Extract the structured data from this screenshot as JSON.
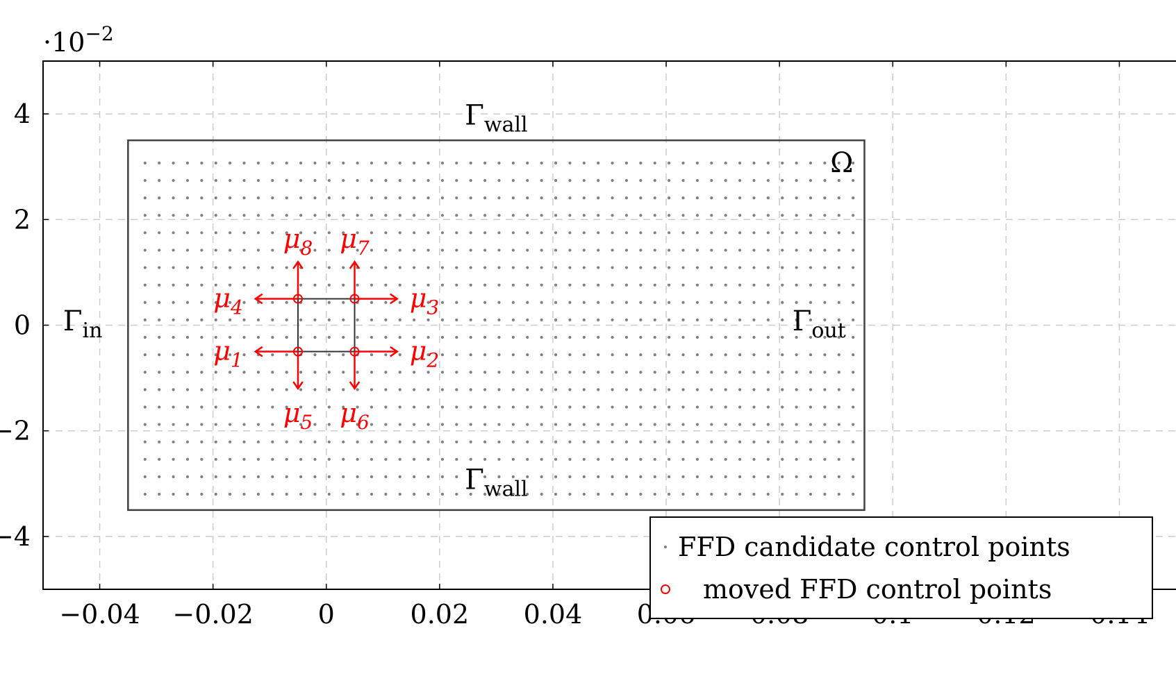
{
  "chart_data": {
    "type": "scatter",
    "title": "",
    "xlabel": "",
    "ylabel": "",
    "y_scale_factor": {
      "dot": "·10",
      "exp": "−2"
    },
    "xlim": [
      -0.05,
      0.15
    ],
    "ylim": [
      -5,
      5
    ],
    "x_ticks": [
      -0.04,
      -0.02,
      0,
      0.02,
      0.04,
      0.06,
      0.08,
      0.1,
      0.12,
      0.14
    ],
    "x_tick_labels": [
      "−0.04",
      "−0.02",
      "0",
      "0.02",
      "0.04",
      "0.06",
      "0.08",
      "0.1",
      "0.12",
      "0.14"
    ],
    "y_ticks": [
      -4,
      -2,
      0,
      2,
      4
    ],
    "y_tick_labels": [
      "−4",
      "−2",
      "0",
      "2",
      "4"
    ],
    "grid": true,
    "domain_rect": {
      "x0": -0.035,
      "x1": 0.095,
      "y0": -3.5,
      "y1": 3.5
    },
    "candidate_grid": {
      "x_start": -0.032,
      "x_step": 0.0025,
      "count_x": 51,
      "y_start": -3.2,
      "y_step": 0.33,
      "count_y": 20
    },
    "moved_points": [
      {
        "x": -0.005,
        "y": -0.5
      },
      {
        "x": 0.005,
        "y": -0.5
      },
      {
        "x": 0.005,
        "y": 0.5
      },
      {
        "x": -0.005,
        "y": 0.5
      }
    ],
    "arrows": [
      {
        "label": "μ",
        "sub": "1",
        "from": [
          -0.005,
          -0.5
        ],
        "to": [
          -0.0125,
          -0.5
        ]
      },
      {
        "label": "μ",
        "sub": "2",
        "from": [
          0.005,
          -0.5
        ],
        "to": [
          0.0125,
          -0.5
        ]
      },
      {
        "label": "μ",
        "sub": "3",
        "from": [
          0.005,
          0.5
        ],
        "to": [
          0.0125,
          0.5
        ]
      },
      {
        "label": "μ",
        "sub": "4",
        "from": [
          -0.005,
          0.5
        ],
        "to": [
          -0.0125,
          0.5
        ]
      },
      {
        "label": "μ",
        "sub": "5",
        "from": [
          -0.005,
          -0.5
        ],
        "to": [
          -0.005,
          -1.2
        ]
      },
      {
        "label": "μ",
        "sub": "6",
        "from": [
          0.005,
          -0.5
        ],
        "to": [
          0.005,
          -1.2
        ]
      },
      {
        "label": "μ",
        "sub": "7",
        "from": [
          0.005,
          0.5
        ],
        "to": [
          0.005,
          1.2
        ]
      },
      {
        "label": "μ",
        "sub": "8",
        "from": [
          -0.005,
          0.5
        ],
        "to": [
          -0.005,
          1.2
        ]
      }
    ],
    "annotations": [
      {
        "text": "Γ",
        "sub": "wall",
        "x": 0.03,
        "y": 3.8
      },
      {
        "text": "Γ",
        "sub": "wall",
        "x": 0.03,
        "y": -3.1
      },
      {
        "text": "Γ",
        "sub": "in",
        "x": -0.043,
        "y": -0.1
      },
      {
        "text": "Γ",
        "sub": "out",
        "x": 0.087,
        "y": -0.1
      },
      {
        "text": "Ω",
        "sub": "",
        "x": 0.091,
        "y": 2.9
      }
    ],
    "series": [
      {
        "name": "FFD candidate control points",
        "marker": "dot",
        "color": "#808080"
      },
      {
        "name": "moved FFD control points",
        "marker": "circle",
        "color": "#ff0000"
      }
    ],
    "legend_position": "bottom-right",
    "colors": {
      "axis": "#000000",
      "grid": "#cccccc",
      "domain": "#404040",
      "accent": "#ff0000"
    }
  }
}
